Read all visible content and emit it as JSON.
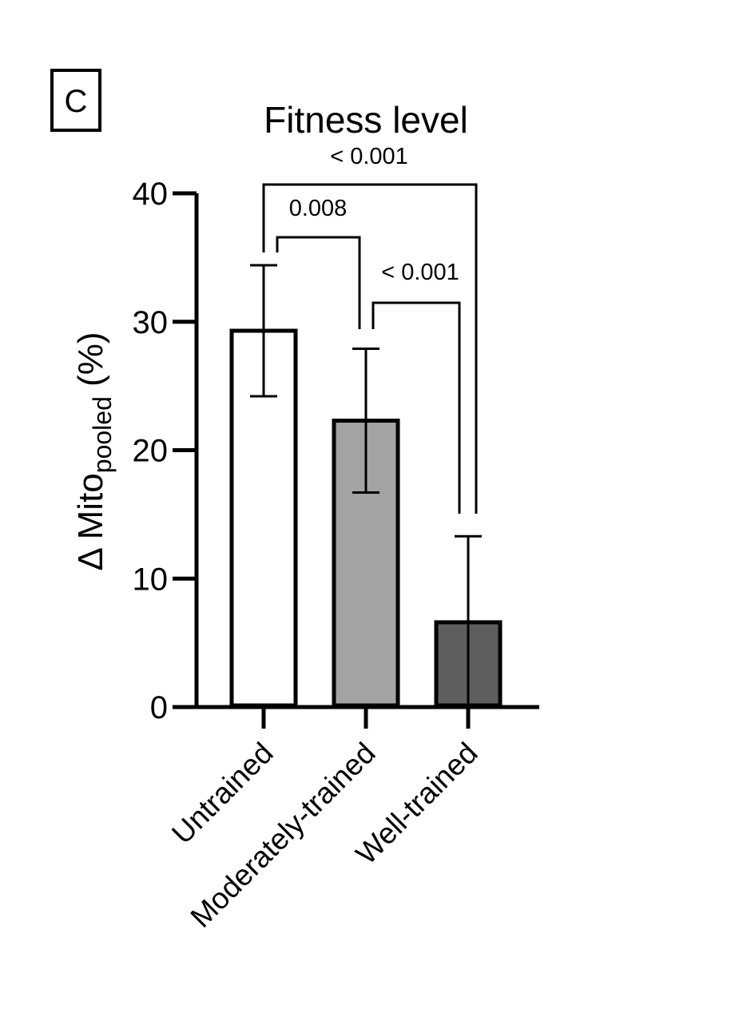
{
  "panel_label": "C",
  "chart_data": {
    "type": "bar",
    "title": "Fitness level",
    "ylabel": {
      "prefix": "Δ Mito",
      "subscript": "pooled",
      "suffix": " (%)"
    },
    "xlabel": "",
    "categories": [
      "Untrained",
      "Moderately-trained",
      "Well-trained"
    ],
    "values": [
      29.3,
      22.3,
      6.6
    ],
    "error": [
      5.1,
      5.6,
      6.7
    ],
    "bar_colors": [
      "#ffffff",
      "#a3a3a3",
      "#5e5e5e"
    ],
    "ylim": [
      0,
      40
    ],
    "yticks": [
      0,
      10,
      20,
      30,
      40
    ],
    "grid": false,
    "legend": "none",
    "comparisons": [
      {
        "from": 0,
        "to": 2,
        "label": "< 0.001"
      },
      {
        "from": 0,
        "to": 1,
        "label": "0.008"
      },
      {
        "from": 1,
        "to": 2,
        "label": "< 0.001"
      }
    ]
  }
}
